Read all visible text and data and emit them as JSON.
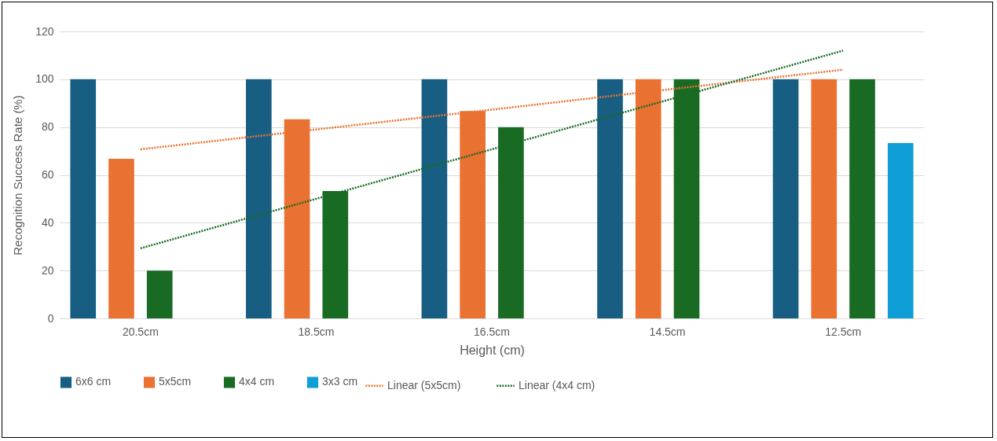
{
  "chart_data": {
    "type": "bar",
    "xlabel": "Height (cm)",
    "ylabel": "Recognition  Success Rate (%)",
    "categories": [
      "20.5cm",
      "18.5cm",
      "16.5cm",
      "14.5cm",
      "12.5cm"
    ],
    "series": [
      {
        "name": "6x6 cm",
        "color": "#175e82",
        "values": [
          100,
          100,
          100,
          100,
          100
        ]
      },
      {
        "name": "5x5cm",
        "color": "#e97132",
        "values": [
          66.7,
          83.3,
          86.7,
          100,
          100
        ]
      },
      {
        "name": "4x4 cm",
        "color": "#196b24",
        "values": [
          20,
          53.3,
          80,
          100,
          100
        ]
      },
      {
        "name": "3x3 cm",
        "color": "#0f9ed5",
        "values": [
          null,
          null,
          null,
          null,
          73.3
        ]
      },
      {
        "name": "Linear (5x5cm)",
        "type": "line",
        "line_style": "dotted",
        "color": "#e97132",
        "values": [
          70.7,
          79,
          87.3,
          95.7,
          104
        ]
      },
      {
        "name": "Linear (4x4 cm)",
        "type": "line",
        "line_style": "dotted",
        "color": "#196b24",
        "values": [
          29.3,
          50,
          70.7,
          91.3,
          112
        ]
      }
    ],
    "ylim": [
      0,
      120
    ],
    "yticks": [
      0,
      20,
      40,
      60,
      80,
      100,
      120
    ],
    "grid": "y",
    "legend": "bottom"
  }
}
